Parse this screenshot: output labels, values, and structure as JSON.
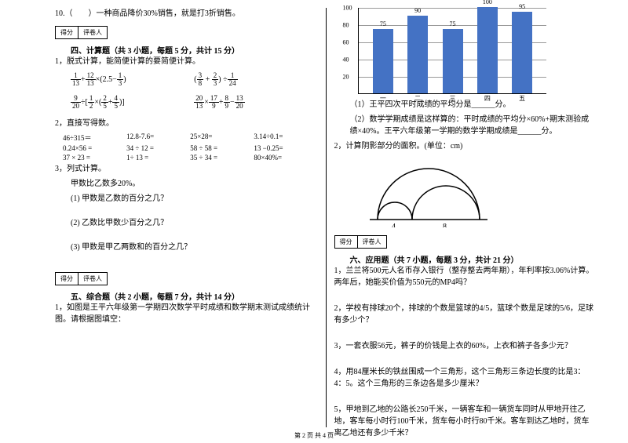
{
  "q10": "10.（　　）一种商品降价30%销售，就是打3折销售。",
  "score_labels": {
    "l": "得分",
    "r": "评卷人"
  },
  "sec4_title": "四、计算题（共 3 小题，每题 5 分，共计 15 分）",
  "sec4_q1": "1，脱式计算，能简便计算的要简便计算。",
  "frac": {
    "f1a": "1",
    "f1b": "13",
    "f1c": "12",
    "f1d": "13",
    "f1e": "2.5−",
    "f1f": "1",
    "f1g": "3",
    "f2a": "3",
    "f2b": "8",
    "f2c": "2",
    "f2d": "3",
    "f2e": "1",
    "f2f": "24",
    "f3a": "9",
    "f3b": "20",
    "f3c": "1",
    "f3d": "2",
    "f3e": "2",
    "f3f": "5",
    "f3g": "4",
    "f3h": "5",
    "f4a": "20",
    "f4b": "13",
    "f4c": "17",
    "f4d": "9",
    "f4e": "8",
    "f4f": "9",
    "f4g": "13",
    "f4h": "20"
  },
  "sec4_q2": "2，直接写得数。",
  "calc": {
    "r1": [
      "46÷315＝",
      "12.8-7.6=",
      "25×28=",
      "3.14÷0.1="
    ],
    "r2": [
      "0.24×56 =",
      "34 ÷ 12 =",
      "58 ÷ 58 =",
      "13 −0.25="
    ],
    "r3": [
      "37 × 23 =",
      "1÷ 13 =",
      "35 ÷ 34 =",
      "80×40%="
    ]
  },
  "sec4_q3": "3，列式计算。",
  "sec4_q3_head": "甲数比乙数多20%。",
  "sec4_q3_1": "(1) 甲数是乙数的百分之几？",
  "sec4_q3_2": "(2) 乙数比甲数少百分之几？",
  "sec4_q3_3": "(3) 甲数是甲乙两数和的百分之几？",
  "sec5_title": "五、综合题（共 2 小题，每题 7 分，共计 14 分）",
  "sec5_q1": "1，如图是王平六年级第一学期四次数学平时成绩和数学期末测试成绩统计图。请根据图填空：",
  "chart": {
    "ymax": 100,
    "ystep": 20,
    "yticks": [
      "20",
      "40",
      "60",
      "80",
      "100"
    ],
    "bars": [
      {
        "label": "一",
        "value": 75,
        "top": "75"
      },
      {
        "label": "二",
        "value": 90,
        "top": "90"
      },
      {
        "label": "三",
        "value": 75,
        "top": "75"
      },
      {
        "label": "四",
        "value": 100,
        "top": "100"
      },
      {
        "label": "五",
        "value": 95,
        "top": "95"
      }
    ],
    "bar_color": "#4472c4",
    "grid_color": "#999999"
  },
  "sec5_sub1": "（1）王平四次平时成绩的平均分是______分。",
  "sec5_sub2": "（2）数学学期成绩是这样算的：平时成绩的平均分×60%+期末测验成绩×40%。王平六年级第一学期的数学学期成绩是______分。",
  "sec5_q2": "2，计算阴影部分的面积。(单位：cm)",
  "arc_labels": {
    "a": "4",
    "b": "8"
  },
  "sec6_title": "六、应用题（共 7 小题，每题 3 分，共计 21 分）",
  "sec6_q1": "1，兰兰将500元人名币存入银行（整存整去两年期），年利率按3.06%计算。两年后，她能买价值为550元的MP4吗？",
  "sec6_q2": "2，学校有排球20个，排球的个数是篮球的4/5，篮球个数是足球的5/6，足球有多少个？",
  "sec6_q3": "3，一套衣服56元，裤子的价钱是上衣的60%，上衣和裤子各多少元？",
  "sec6_q4": "4，用84厘米长的铁丝围成一个三角形，这个三角形三条边长度的比是3：4：5。这个三角形的三条边各是多少厘米？",
  "sec6_q5": "5，甲地到乙地的公路长250千米，一辆客车和一辆货车同时从甲地开往乙地，客车每小时行100千米，货车每小时行80千米。客车到达乙地时，货车离乙地还有多少千米？",
  "footer": "第 2 页 共 4 页"
}
